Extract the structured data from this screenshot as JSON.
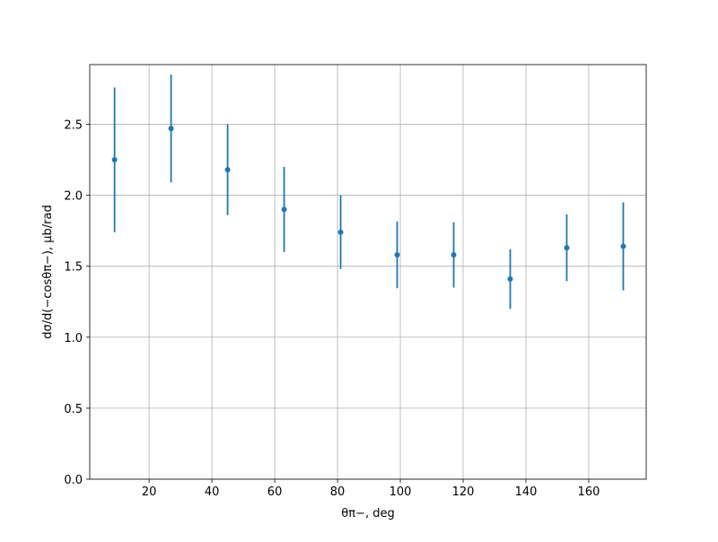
{
  "chart_data": {
    "type": "errorbar",
    "x_label": "θπ−, deg",
    "y_label": "dσ/d(−cosθπ−), μb/rad",
    "x": [
      9,
      27,
      45,
      63,
      81,
      99,
      117,
      135,
      153,
      171
    ],
    "values": [
      2.25,
      2.47,
      2.18,
      1.9,
      1.74,
      1.58,
      1.58,
      1.41,
      1.63,
      1.64
    ],
    "errors": [
      0.51,
      0.38,
      0.32,
      0.3,
      0.26,
      0.235,
      0.23,
      0.21,
      0.235,
      0.31
    ],
    "color": "#1f77b4",
    "xlim": [
      1.1,
      178.3
    ],
    "ylim": [
      0,
      2.92
    ],
    "xticks": [
      20,
      40,
      60,
      80,
      100,
      120,
      140,
      160
    ],
    "yticks": [
      {
        "value": 0,
        "label": "0.0"
      },
      {
        "value": 0.5,
        "label": "0.5"
      },
      {
        "value": 1,
        "label": "1.0"
      },
      {
        "value": 1.5,
        "label": "1.5"
      },
      {
        "value": 2,
        "label": "2.0"
      },
      {
        "value": 2.5,
        "label": "2.5"
      }
    ],
    "grid": true
  }
}
